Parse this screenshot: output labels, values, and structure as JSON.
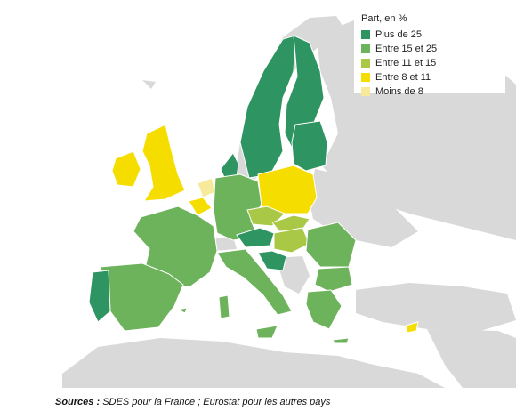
{
  "legend": {
    "title": "Part, en %",
    "items": [
      {
        "label": "Plus de 25",
        "color": "#2e9461"
      },
      {
        "label": "Entre 15 et 25",
        "color": "#6db35b"
      },
      {
        "label": "Entre 11 et 15",
        "color": "#a8c846"
      },
      {
        "label": "Entre 8 et 11",
        "color": "#f6dd00"
      },
      {
        "label": "Moins de 8",
        "color": "#f7ea9b"
      }
    ]
  },
  "source": {
    "prefix": "Sources :",
    "text": " SDES pour la France ; Eurostat pour les autres pays"
  },
  "colors": {
    "non_eu": "#d9d9d9",
    "sea": "#ffffff",
    "border": "#ffffff"
  }
}
